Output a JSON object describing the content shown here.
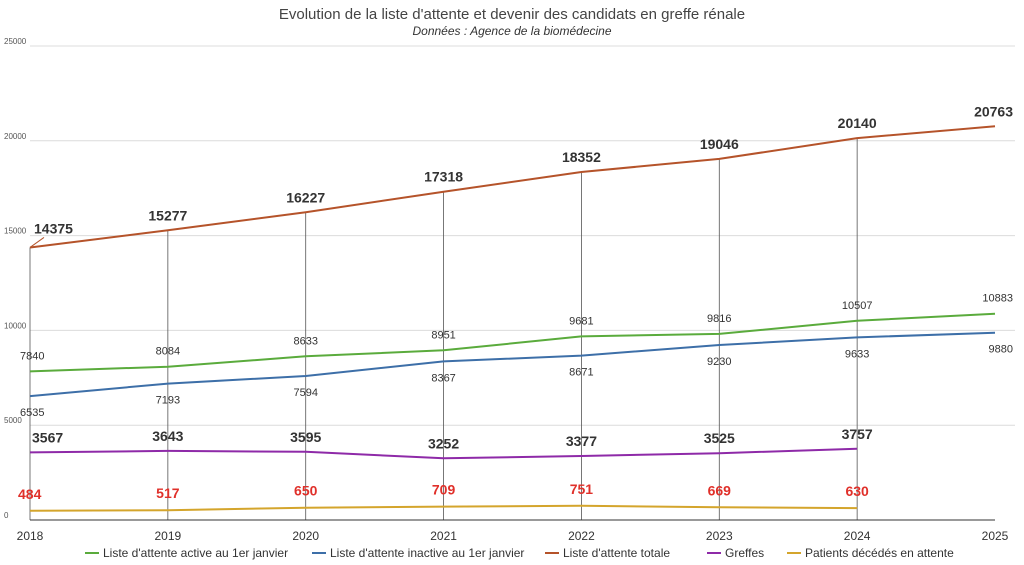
{
  "chart_data": {
    "type": "line",
    "title": "Evolution de la liste d'attente et devenir des candidats en greffe rénale",
    "subtitle": "Données : Agence de la biomédecine",
    "x": [
      "2018",
      "2019",
      "2020",
      "2021",
      "2022",
      "2023",
      "2024",
      "2025"
    ],
    "ylim": [
      0,
      25000
    ],
    "yticks": [
      "0",
      "5000",
      "10000",
      "15000",
      "20000",
      "25000"
    ],
    "grid": true,
    "legend_position": "bottom",
    "series": [
      {
        "name": "Liste d'attente active au 1er janvier",
        "color": "#5aab3c",
        "values": [
          7840,
          8084,
          8633,
          8951,
          9681,
          9816,
          10507,
          10883
        ],
        "label_style": "small",
        "label_pos": "above"
      },
      {
        "name": "Liste d'attente inactive au 1er janvier",
        "color": "#3d6fa8",
        "values": [
          6535,
          7193,
          7594,
          8367,
          8671,
          9230,
          9633,
          9880
        ],
        "label_style": "small",
        "label_pos": "below"
      },
      {
        "name": "Liste d'attente totale",
        "color": "#b5532a",
        "values": [
          14375,
          15277,
          16227,
          17318,
          18352,
          19046,
          20140,
          20763
        ],
        "label_style": "big",
        "label_pos": "above"
      },
      {
        "name": "Greffes",
        "color": "#8e2aa8",
        "values": [
          3567,
          3643,
          3595,
          3252,
          3377,
          3525,
          3757,
          null
        ],
        "label_style": "big",
        "label_pos": "above"
      },
      {
        "name": "Patients décédés en attente",
        "color": "#d4a52c",
        "values": [
          484,
          517,
          650,
          709,
          751,
          669,
          630,
          null
        ],
        "label_style": "red",
        "label_pos": "above"
      }
    ]
  }
}
